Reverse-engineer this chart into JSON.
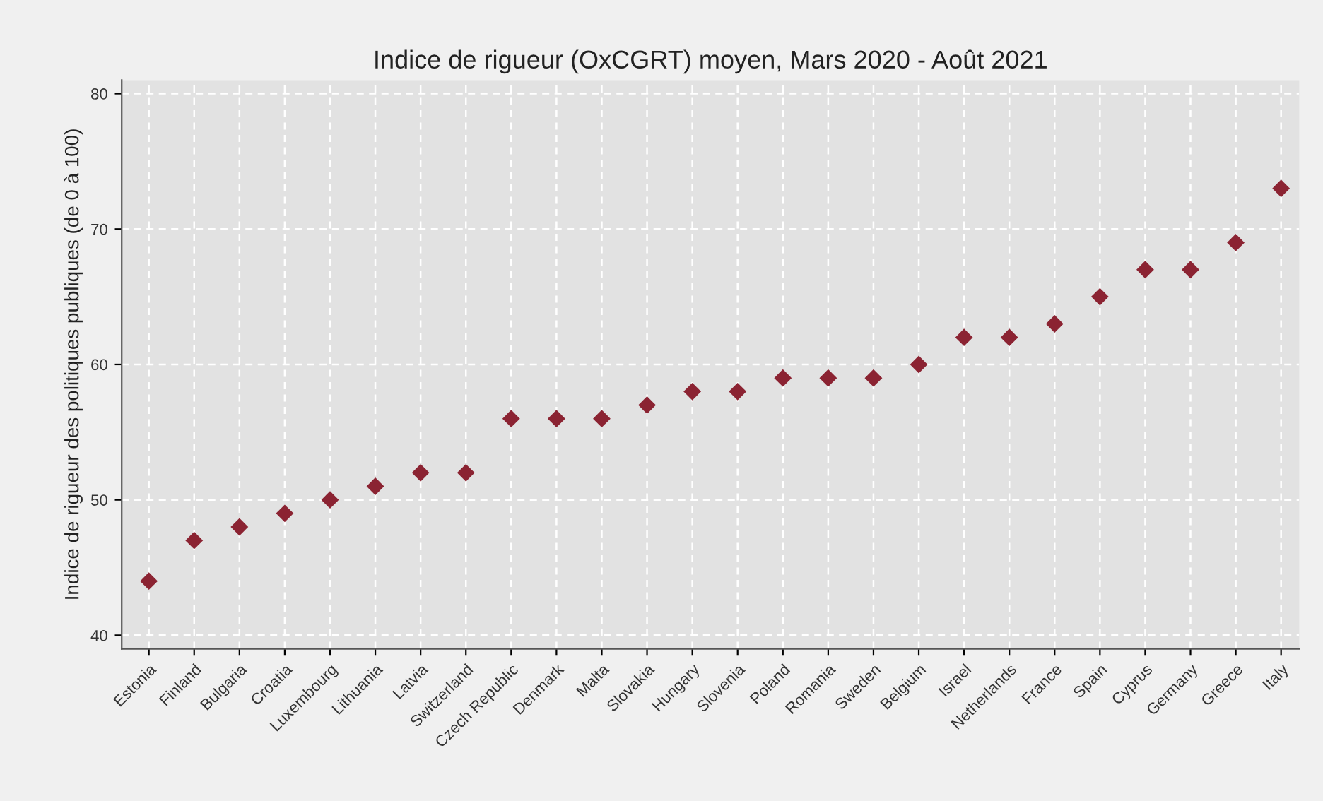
{
  "chart_data": {
    "type": "scatter",
    "title": "Indice de rigueur (OxCGRT) moyen, Mars 2020 - Août 2021",
    "ylabel": "Indice de rigueur des politiques publiques (de 0 à 100)",
    "categories": [
      "Estonia",
      "Finland",
      "Bulgaria",
      "Croatia",
      "Luxembourg",
      "Lithuania",
      "Latvia",
      "Switzerland",
      "Czech Republic",
      "Denmark",
      "Malta",
      "Slovakia",
      "Hungary",
      "Slovenia",
      "Poland",
      "Romania",
      "Sweden",
      "Belgium",
      "Israel",
      "Netherlands",
      "France",
      "Spain",
      "Cyprus",
      "Germany",
      "Greece",
      "Italy"
    ],
    "values": [
      44,
      47,
      48,
      49,
      50,
      51,
      52,
      52,
      56,
      56,
      56,
      57,
      58,
      58,
      59,
      59,
      59,
      60,
      62,
      62,
      63,
      65,
      67,
      67,
      69,
      73
    ],
    "color": "#8b2332",
    "marker": "diamond",
    "ylim": [
      39,
      81
    ],
    "yticks": [
      40,
      50,
      60,
      70,
      80
    ],
    "grid": true
  }
}
